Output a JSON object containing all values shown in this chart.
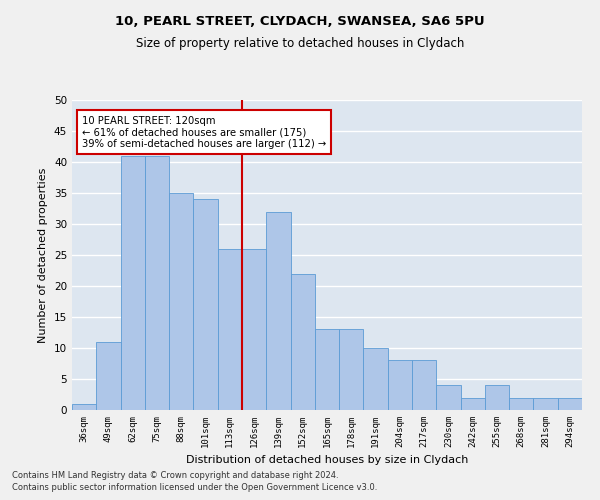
{
  "title1": "10, PEARL STREET, CLYDACH, SWANSEA, SA6 5PU",
  "title2": "Size of property relative to detached houses in Clydach",
  "xlabel": "Distribution of detached houses by size in Clydach",
  "ylabel": "Number of detached properties",
  "categories": [
    "36sqm",
    "49sqm",
    "62sqm",
    "75sqm",
    "88sqm",
    "101sqm",
    "113sqm",
    "126sqm",
    "139sqm",
    "152sqm",
    "165sqm",
    "178sqm",
    "191sqm",
    "204sqm",
    "217sqm",
    "230sqm",
    "242sqm",
    "255sqm",
    "268sqm",
    "281sqm",
    "294sqm"
  ],
  "values": [
    1,
    11,
    41,
    41,
    35,
    34,
    26,
    26,
    32,
    22,
    13,
    13,
    10,
    8,
    8,
    4,
    2,
    4,
    2,
    2,
    2
  ],
  "bar_color": "#aec6e8",
  "bar_edge_color": "#5b9bd5",
  "bg_color": "#dde6f0",
  "grid_color": "#ffffff",
  "annotation_text": "10 PEARL STREET: 120sqm\n← 61% of detached houses are smaller (175)\n39% of semi-detached houses are larger (112) →",
  "annotation_box_color": "#ffffff",
  "annotation_box_edge": "#cc0000",
  "vline_color": "#cc0000",
  "vline_x_index": 6.5,
  "ylim": [
    0,
    50
  ],
  "yticks": [
    0,
    5,
    10,
    15,
    20,
    25,
    30,
    35,
    40,
    45,
    50
  ],
  "footer1": "Contains HM Land Registry data © Crown copyright and database right 2024.",
  "footer2": "Contains public sector information licensed under the Open Government Licence v3.0."
}
